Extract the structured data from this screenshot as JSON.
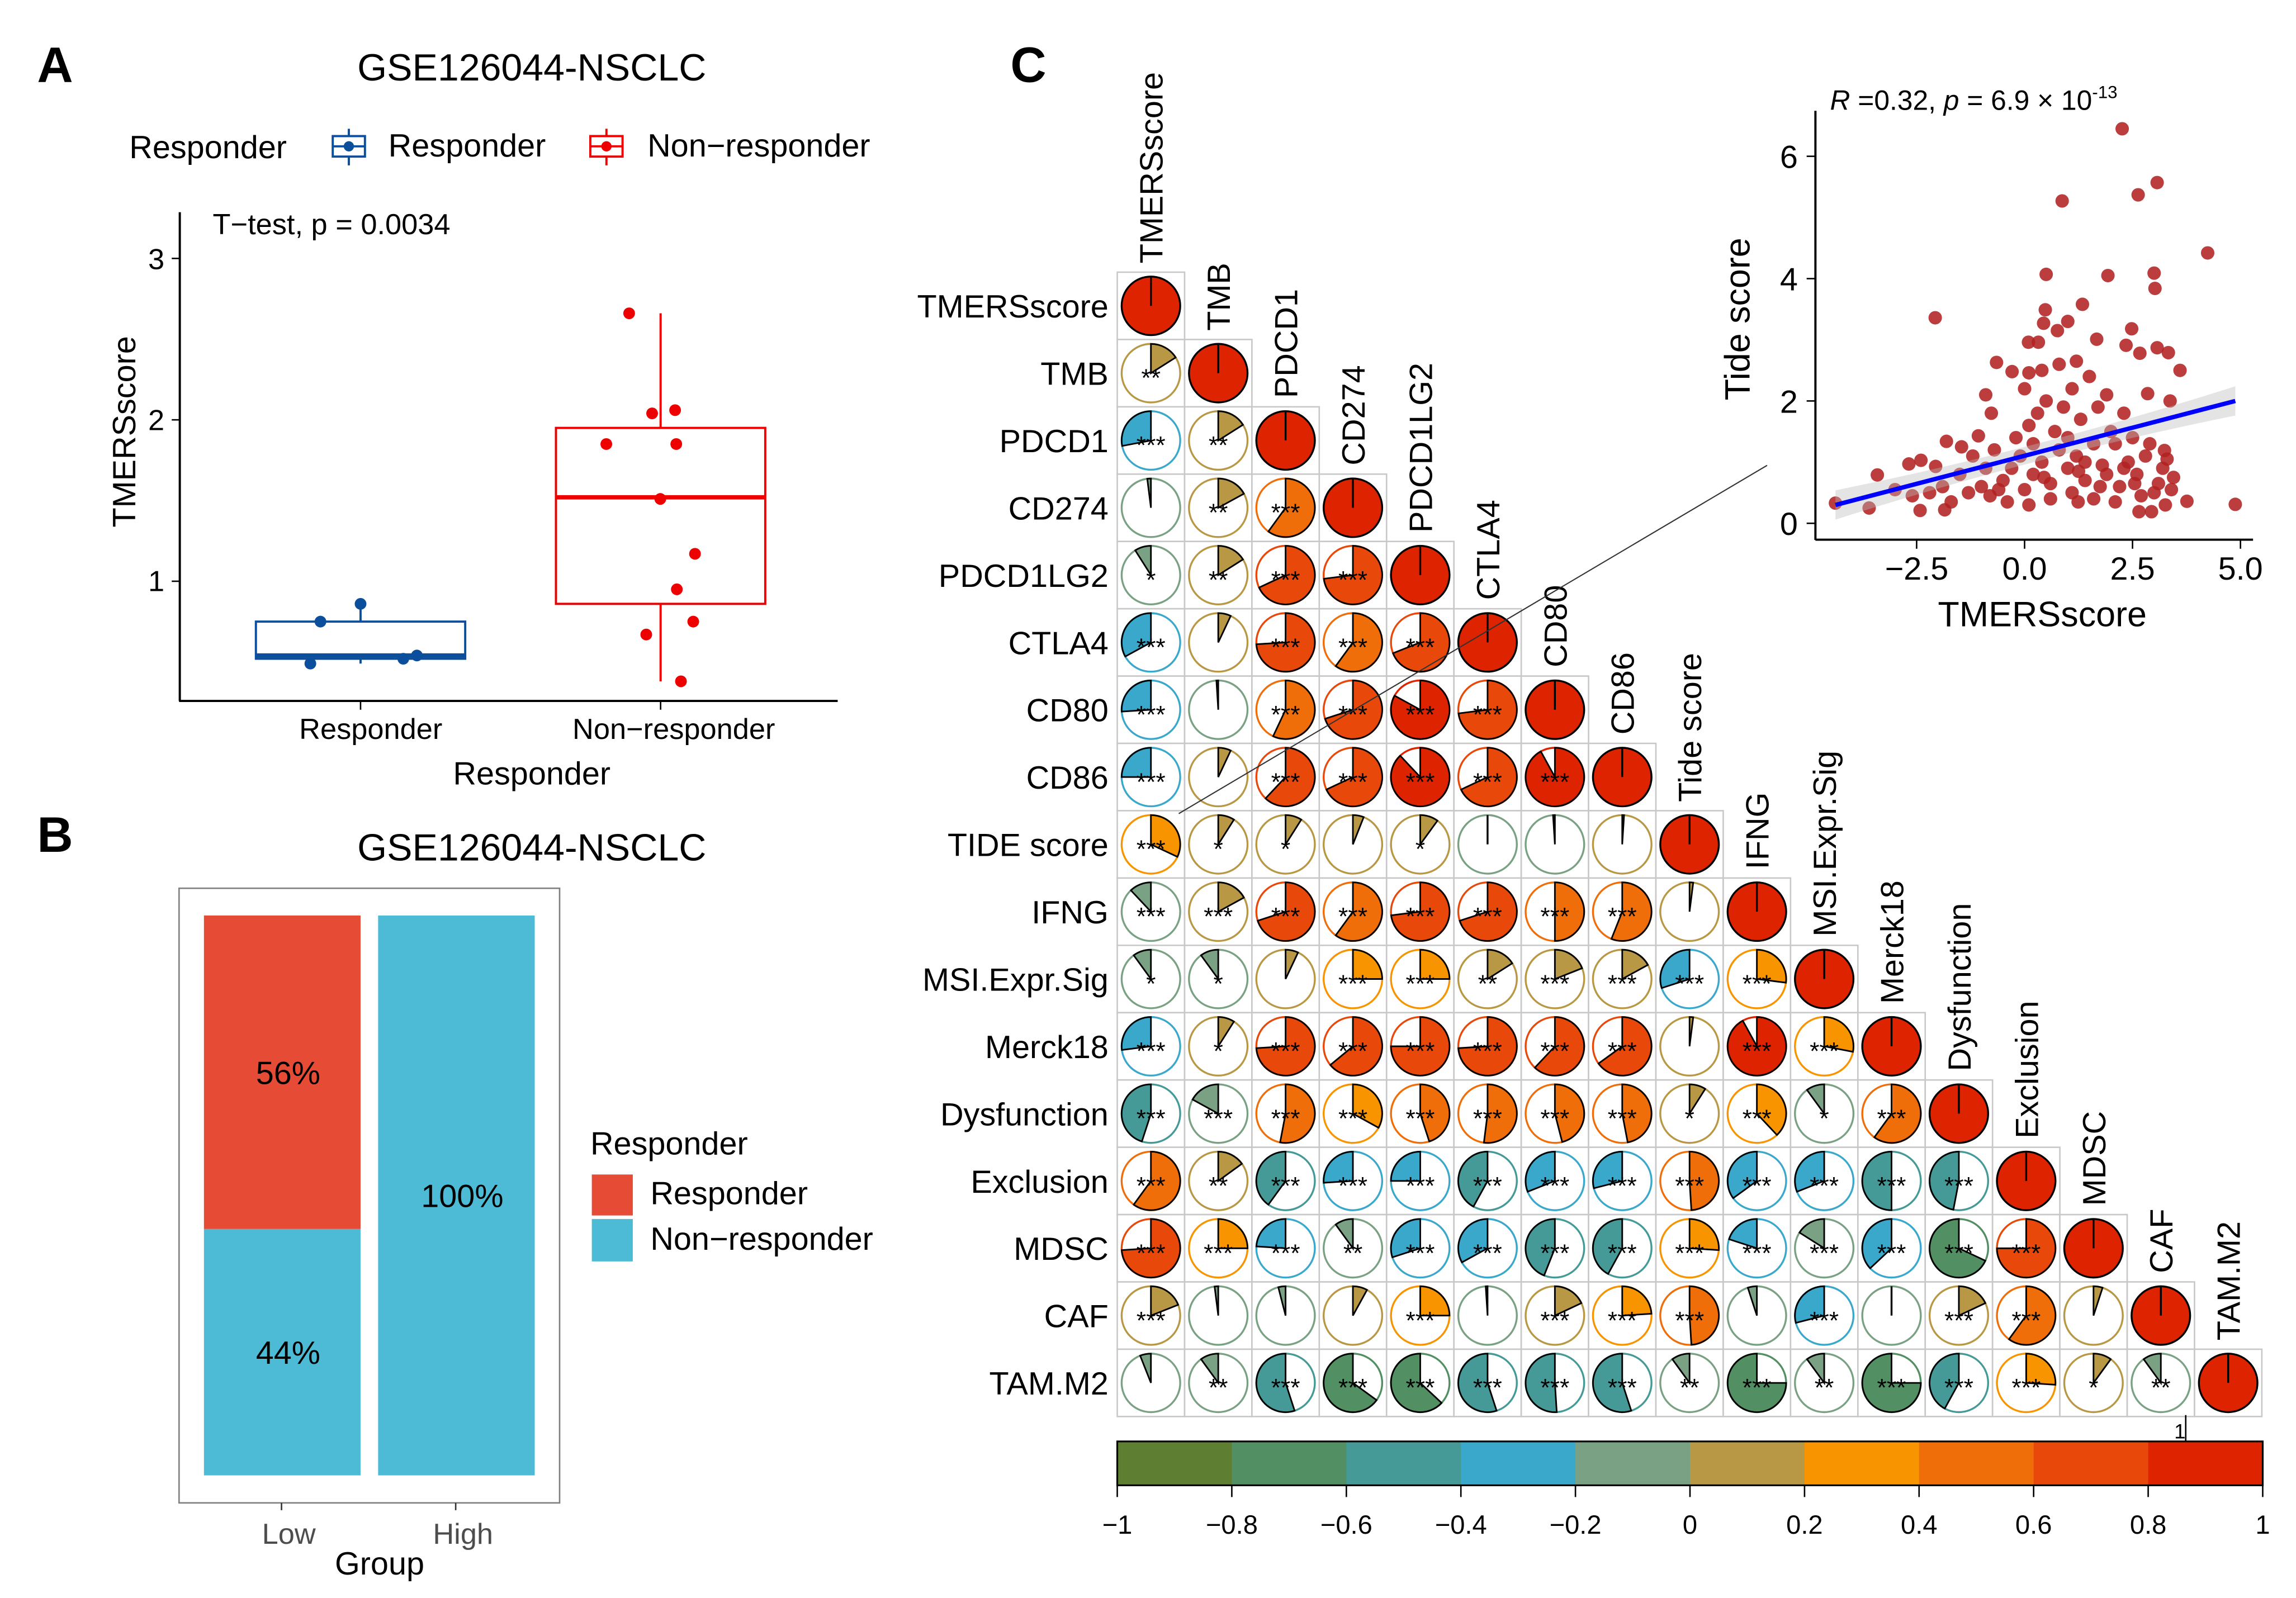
{
  "panel_letters": {
    "a": "A",
    "b": "B",
    "c": "C"
  },
  "chart_data": [
    {
      "type": "box",
      "panel": "A",
      "title": "GSE126044-NSCLC",
      "legend": {
        "title": "Responder",
        "entries": [
          "Responder",
          "Non−responder"
        ],
        "placement": "top"
      },
      "annotation": "T−test, p = 0.0034",
      "xlabel": "Responder",
      "ylabel": "TMERSscore",
      "categories": [
        "Responder",
        "Non−responder"
      ],
      "yticks": [
        "1",
        "2",
        "3"
      ],
      "ylim": [
        0.26,
        3.3
      ],
      "colors": {
        "Responder": "#0B4F9C",
        "Non-responder": "#EE0000"
      },
      "series": [
        {
          "name": "Responder",
          "box": {
            "whisker_low": 0.49,
            "q1": 0.52,
            "median": 0.54,
            "q3": 0.75,
            "whisker_high": 0.86
          },
          "points": [
            0.86,
            0.75,
            0.49,
            0.52,
            0.54
          ]
        },
        {
          "name": "Non−responder",
          "box": {
            "whisker_low": 0.38,
            "q1": 0.86,
            "median": 1.52,
            "q3": 1.95,
            "whisker_high": 2.66
          },
          "points": [
            2.66,
            2.04,
            2.06,
            1.85,
            1.85,
            1.51,
            1.17,
            0.95,
            0.75,
            0.67,
            0.38
          ]
        }
      ]
    },
    {
      "type": "bar",
      "stacked": true,
      "panel": "B",
      "title": "GSE126044-NSCLC",
      "xlabel": "Group",
      "categories": [
        "Low",
        "High"
      ],
      "legend": {
        "title": "Responder",
        "entries": [
          "Responder",
          "Non−responder"
        ],
        "placement": "right"
      },
      "colors": {
        "Responder": "#E64B35",
        "Non-responder": "#4DBBD5"
      },
      "series": [
        {
          "name": "Responder",
          "values": [
            56,
            0
          ]
        },
        {
          "name": "Non−responder",
          "values": [
            44,
            100
          ]
        }
      ],
      "labels": [
        [
          "56%",
          "44%"
        ],
        [
          "",
          "100%"
        ]
      ]
    },
    {
      "type": "heatmap",
      "panel": "C",
      "style": "corrplot-pie-lower",
      "col_labels": [
        "TMERSscore",
        "TMB",
        "PDCD1",
        "CD274",
        "PDCD1LG2",
        "CTLA4",
        "CD80",
        "CD86",
        "Tide score",
        "IFNG",
        "MSI.Expr.Sig",
        "Merck18",
        "Dysfunction",
        "Exclusion",
        "MDSC",
        "CAF",
        "TAM.M2"
      ],
      "row_labels": [
        "TMERSscore",
        "TMB",
        "PDCD1",
        "CD274",
        "PDCD1LG2",
        "CTLA4",
        "CD80",
        "CD86",
        "TIDE score",
        "IFNG",
        "MSI.Expr.Sig",
        "Merck18",
        "Dysfunction",
        "Exclusion",
        "MDSC",
        "CAF",
        "TAM.M2"
      ],
      "values": [
        [
          1
        ],
        [
          0.16,
          1
        ],
        [
          -0.28,
          0.16,
          1
        ],
        [
          -0.02,
          0.17,
          0.6,
          1
        ],
        [
          -0.09,
          0.16,
          0.68,
          0.73,
          1
        ],
        [
          -0.33,
          0.07,
          0.74,
          0.6,
          0.69,
          1
        ],
        [
          -0.26,
          -0.01,
          0.57,
          0.7,
          0.83,
          0.73,
          1
        ],
        [
          -0.25,
          0.07,
          0.62,
          0.68,
          0.88,
          0.68,
          0.92,
          1
        ],
        [
          0.32,
          0.09,
          0.09,
          0.06,
          0.1,
          0.0,
          -0.01,
          0.01,
          1
        ],
        [
          -0.12,
          0.17,
          0.7,
          0.6,
          0.73,
          0.7,
          0.5,
          0.56,
          0.02,
          1
        ],
        [
          -0.1,
          -0.1,
          0.07,
          0.25,
          0.25,
          0.16,
          0.19,
          0.17,
          -0.3,
          0.27,
          1
        ],
        [
          -0.27,
          0.09,
          0.74,
          0.64,
          0.75,
          0.74,
          0.62,
          0.65,
          0.02,
          0.92,
          0.28,
          1
        ],
        [
          -0.45,
          -0.17,
          0.53,
          0.33,
          0.45,
          0.52,
          0.46,
          0.47,
          0.09,
          0.38,
          -0.1,
          0.6,
          1
        ],
        [
          0.6,
          0.15,
          -0.4,
          -0.26,
          -0.25,
          -0.42,
          -0.31,
          -0.29,
          0.49,
          -0.35,
          -0.31,
          -0.5,
          -0.47,
          1
        ],
        [
          0.74,
          0.25,
          -0.24,
          -0.1,
          -0.3,
          -0.33,
          -0.44,
          -0.42,
          0.26,
          -0.2,
          -0.16,
          -0.37,
          -0.68,
          0.75,
          1
        ],
        [
          0.19,
          -0.02,
          -0.04,
          0.08,
          0.25,
          -0.01,
          0.18,
          0.24,
          0.49,
          -0.05,
          -0.29,
          0.0,
          0.18,
          0.6,
          0.05,
          1
        ],
        [
          -0.06,
          -0.1,
          -0.55,
          -0.65,
          -0.63,
          -0.55,
          -0.51,
          -0.55,
          -0.1,
          -0.75,
          -0.1,
          -0.75,
          -0.42,
          0.26,
          0.1,
          -0.1,
          1
        ]
      ],
      "significance": [
        [
          ""
        ],
        [
          "**",
          ""
        ],
        [
          "***",
          "**",
          ""
        ],
        [
          "",
          "**",
          "***",
          ""
        ],
        [
          "*",
          "**",
          "***",
          "***",
          ""
        ],
        [
          "***",
          "",
          "***",
          "***",
          "***",
          ""
        ],
        [
          "***",
          "",
          "***",
          "***",
          "***",
          "***",
          ""
        ],
        [
          "***",
          "",
          "***",
          "***",
          "***",
          "***",
          "***",
          ""
        ],
        [
          "***",
          "*",
          "*",
          "",
          "*",
          "",
          "",
          "",
          ""
        ],
        [
          "***",
          "***",
          "***",
          "***",
          "***",
          "***",
          "***",
          "***",
          "",
          ""
        ],
        [
          "*",
          "*",
          "",
          "***",
          "***",
          "**",
          "***",
          "***",
          "***",
          "***",
          ""
        ],
        [
          "***",
          "*",
          "***",
          "***",
          "***",
          "***",
          "***",
          "***",
          "",
          "***",
          "***",
          ""
        ],
        [
          "***",
          "***",
          "***",
          "***",
          "***",
          "***",
          "***",
          "***",
          "*",
          "***",
          "*",
          "***",
          ""
        ],
        [
          "***",
          "**",
          "***",
          "***",
          "***",
          "***",
          "***",
          "***",
          "***",
          "***",
          "***",
          "***",
          "***",
          ""
        ],
        [
          "***",
          "***",
          "***",
          "**",
          "***",
          "***",
          "***",
          "***",
          "***",
          "***",
          "***",
          "***",
          "***",
          "***",
          ""
        ],
        [
          "***",
          "",
          "",
          "",
          "***",
          "",
          "***",
          "***",
          "***",
          "",
          "***",
          "",
          "***",
          "***",
          "",
          ""
        ],
        [
          "",
          "**",
          "***",
          "***",
          "***",
          "***",
          "***",
          "***",
          "**",
          "***",
          "**",
          "***",
          "***",
          "***",
          "*",
          "**",
          ""
        ]
      ],
      "colorbar": {
        "range": [
          -1,
          1
        ],
        "ticks": [
          "−1",
          "−0.8",
          "−0.6",
          "−0.4",
          "−0.2",
          "0",
          "0.2",
          "0.4",
          "0.6",
          "0.8",
          "1"
        ],
        "colors": [
          "#5E7F32",
          "#528F63",
          "#459A97",
          "#3AA8CB",
          "#7AA183",
          "#B89845",
          "#F79400",
          "#F06E0A",
          "#E8490A",
          "#DD2300"
        ],
        "marker_label": "1"
      }
    },
    {
      "type": "scatter",
      "panel": "C-inset",
      "annotation": {
        "r_sym": "R",
        "r_text": " =0.32, ",
        "p_sym": "p",
        "p_text": " = 6.9 × 10",
        "p_exp": "-13"
      },
      "xlabel": "TMERSscore",
      "ylabel": "Tide score",
      "xticks": [
        "−2.5",
        "0.0",
        "2.5",
        "5.0"
      ],
      "yticks": [
        "0",
        "2",
        "4",
        "6"
      ],
      "xlim": [
        -4.6,
        5.3
      ],
      "ylim": [
        -0.25,
        6.75
      ],
      "point_color": "#B22222",
      "fit_color": "#0000FF",
      "fit": {
        "x": [
          -4.38,
          4.88
        ],
        "y": [
          0.3,
          2.0
        ]
      },
      "points": [
        [
          2.26,
          6.45
        ],
        [
          3.07,
          5.57
        ],
        [
          2.63,
          5.37
        ],
        [
          0.87,
          5.27
        ],
        [
          4.24,
          4.42
        ],
        [
          0.5,
          4.07
        ],
        [
          1.93,
          4.05
        ],
        [
          3.0,
          4.09
        ],
        [
          3.02,
          3.84
        ],
        [
          -2.07,
          3.36
        ],
        [
          1.34,
          3.58
        ],
        [
          0.48,
          3.49
        ],
        [
          0.44,
          3.27
        ],
        [
          1.0,
          3.3
        ],
        [
          0.76,
          3.15
        ],
        [
          2.48,
          3.18
        ],
        [
          1.67,
          3.01
        ],
        [
          2.35,
          2.91
        ],
        [
          3.07,
          2.87
        ],
        [
          3.33,
          2.79
        ],
        [
          2.67,
          2.78
        ],
        [
          -0.65,
          2.63
        ],
        [
          3.6,
          2.5
        ],
        [
          -0.29,
          2.48
        ],
        [
          0.1,
          2.46
        ],
        [
          0.09,
          2.96
        ],
        [
          0.32,
          2.96
        ],
        [
          -0.9,
          2.1
        ],
        [
          -0.77,
          1.8
        ],
        [
          3.37,
          2.0
        ],
        [
          2.85,
          2.12
        ],
        [
          4.88,
          0.31
        ],
        [
          3.76,
          0.36
        ],
        [
          -4.38,
          0.33
        ],
        [
          -3.6,
          0.25
        ],
        [
          -3.41,
          0.79
        ],
        [
          -2.68,
          0.97
        ],
        [
          -2.4,
          1.03
        ],
        [
          -2.06,
          0.93
        ],
        [
          -1.81,
          1.34
        ],
        [
          -1.46,
          1.25
        ],
        [
          -1.07,
          1.43
        ],
        [
          -2.42,
          0.21
        ],
        [
          -1.85,
          0.22
        ],
        [
          2.65,
          0.19
        ],
        [
          2.94,
          0.19
        ],
        [
          1.24,
          0.35
        ],
        [
          3.26,
          0.3
        ],
        [
          3.24,
          1.19
        ],
        [
          -1.3,
          0.5
        ],
        [
          -1.0,
          0.6
        ],
        [
          -0.8,
          0.45
        ],
        [
          -0.5,
          0.7
        ],
        [
          -0.3,
          0.9
        ],
        [
          0.0,
          0.55
        ],
        [
          0.2,
          0.8
        ],
        [
          0.4,
          1.0
        ],
        [
          0.6,
          0.65
        ],
        [
          0.8,
          1.2
        ],
        [
          1.0,
          0.9
        ],
        [
          1.2,
          1.1
        ],
        [
          1.4,
          0.7
        ],
        [
          1.6,
          1.3
        ],
        [
          1.8,
          0.95
        ],
        [
          2.0,
          1.5
        ],
        [
          2.2,
          0.6
        ],
        [
          2.4,
          1.0
        ],
        [
          2.6,
          0.8
        ],
        [
          2.8,
          1.1
        ],
        [
          3.0,
          0.5
        ],
        [
          3.2,
          0.9
        ],
        [
          3.4,
          0.55
        ],
        [
          -1.5,
          0.8
        ],
        [
          -1.2,
          1.1
        ],
        [
          -0.7,
          1.2
        ],
        [
          -0.2,
          1.4
        ],
        [
          0.1,
          1.6
        ],
        [
          0.3,
          1.8
        ],
        [
          0.5,
          2.0
        ],
        [
          0.7,
          1.5
        ],
        [
          0.9,
          1.9
        ],
        [
          1.1,
          2.2
        ],
        [
          1.3,
          1.7
        ],
        [
          1.5,
          2.4
        ],
        [
          1.7,
          1.9
        ],
        [
          1.9,
          2.1
        ],
        [
          2.1,
          1.3
        ],
        [
          2.3,
          1.8
        ],
        [
          2.5,
          1.4
        ],
        [
          -0.4,
          0.35
        ],
        [
          0.1,
          0.3
        ],
        [
          0.6,
          0.4
        ],
        [
          1.1,
          0.5
        ],
        [
          1.6,
          0.4
        ],
        [
          2.1,
          0.35
        ],
        [
          2.7,
          0.45
        ],
        [
          3.1,
          0.65
        ],
        [
          3.3,
          1.05
        ],
        [
          -2.2,
          0.5
        ],
        [
          -1.9,
          0.6
        ],
        [
          -2.6,
          0.45
        ],
        [
          -3.0,
          0.55
        ],
        [
          -1.7,
          0.35
        ],
        [
          0.0,
          2.2
        ],
        [
          0.4,
          2.5
        ],
        [
          0.8,
          2.6
        ],
        [
          1.2,
          2.65
        ],
        [
          -0.1,
          1.1
        ],
        [
          0.2,
          1.3
        ],
        [
          1.0,
          1.4
        ],
        [
          1.4,
          1.0
        ],
        [
          1.9,
          0.8
        ],
        [
          2.3,
          0.9
        ],
        [
          2.9,
          1.3
        ],
        [
          -0.9,
          0.9
        ],
        [
          -0.6,
          0.55
        ],
        [
          0.45,
          0.75
        ],
        [
          1.25,
          0.85
        ],
        [
          1.75,
          0.6
        ],
        [
          2.55,
          0.65
        ],
        [
          3.45,
          0.75
        ]
      ]
    }
  ]
}
